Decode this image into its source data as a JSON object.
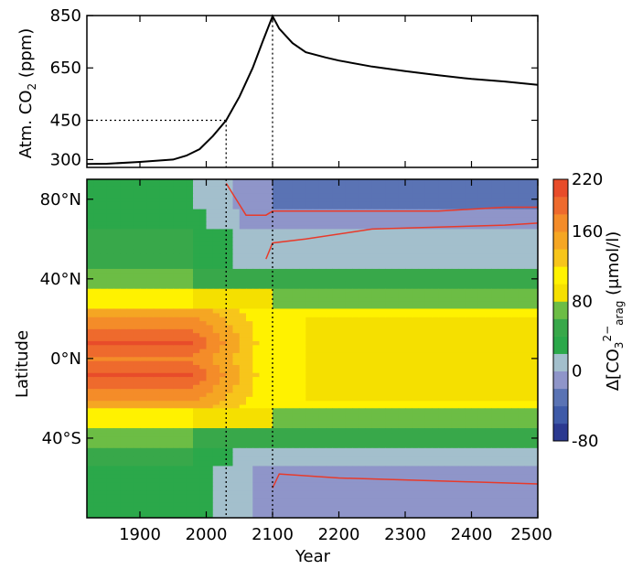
{
  "chart_data": [
    {
      "type": "line",
      "xlabel": "",
      "ylabel": "Atm. CO",
      "ylabel_sub": "2",
      "ylabel_unit": " (ppm)",
      "xlim": [
        1820,
        2500
      ],
      "ylim": [
        270,
        850
      ],
      "yticks": [
        300,
        450,
        650,
        850
      ],
      "series": [
        {
          "x": [
            1820,
            1850,
            1900,
            1950,
            1970,
            1990,
            2010,
            2030,
            2050,
            2070,
            2085,
            2100,
            2110,
            2130,
            2150,
            2180,
            2200,
            2250,
            2300,
            2350,
            2400,
            2450,
            2500
          ],
          "values": [
            283,
            284,
            291,
            300,
            315,
            340,
            390,
            450,
            540,
            650,
            750,
            848,
            800,
            745,
            710,
            690,
            678,
            655,
            638,
            622,
            608,
            598,
            585
          ]
        }
      ],
      "reference_lines": [
        {
          "axis": "y",
          "value": 450,
          "from_x": 1820,
          "to_x": 2030
        },
        {
          "axis": "x",
          "value": 2030
        },
        {
          "axis": "x",
          "value": 2100
        }
      ]
    },
    {
      "type": "heatmap",
      "xlabel": "Year",
      "ylabel": "Latitude",
      "xlim": [
        1820,
        2500
      ],
      "ylim": [
        -80,
        90
      ],
      "xticks": [
        1900,
        2000,
        2100,
        2200,
        2300,
        2400,
        2500
      ],
      "yticks": [
        -40,
        0,
        40,
        80
      ],
      "ytick_labels": [
        "40°S",
        "0°N",
        "40°N",
        "80°N"
      ],
      "colorbar": {
        "label_prefix": "Δ[CO",
        "label_sub": "3",
        "label_sup": "2−",
        "label_sub2": "arag",
        "label_unit": " (μmol/l)",
        "ticks": [
          220,
          160,
          80,
          0,
          -80
        ],
        "bounds": [
          -80,
          -60,
          -40,
          -20,
          0,
          20,
          40,
          60,
          80,
          100,
          120,
          140,
          160,
          180,
          200,
          220
        ],
        "colors": [
          "#2b3990",
          "#3e5aa8",
          "#5a73b4",
          "#8f95c9",
          "#a3bfcc",
          "#2ba84a",
          "#38a84a",
          "#6cbd45",
          "#f5e000",
          "#fff200",
          "#f7c51b",
          "#f5a623",
          "#f48c29",
          "#ee6a2d",
          "#e84c2a"
        ]
      },
      "bands": [
        {
          "lat": [
            75,
            90
          ],
          "before_2010": 20,
          "transition": -20,
          "after_2100": -40
        },
        {
          "lat": [
            65,
            75
          ],
          "before_2010": 30,
          "transition": -20,
          "after_2100": -5
        },
        {
          "lat": [
            45,
            65
          ],
          "before_2010": 40,
          "transition": 0,
          "after_2100": 10
        },
        {
          "lat": [
            35,
            45
          ],
          "before_2010": 60,
          "transition": 40,
          "after_2100": 40
        },
        {
          "lat": [
            25,
            35
          ],
          "before_2010": 100,
          "transition": 80,
          "after_2100": 70
        },
        {
          "lat": [
            -25,
            25
          ],
          "before_2010": 200,
          "transition": 100,
          "after_2100": 100
        },
        {
          "lat": [
            -35,
            -25
          ],
          "before_2010": 100,
          "transition": 80,
          "after_2100": 70
        },
        {
          "lat": [
            -45,
            -35
          ],
          "before_2010": 60,
          "transition": 40,
          "after_2100": 40
        },
        {
          "lat": [
            -55,
            -45
          ],
          "before_2010": 40,
          "transition": 0,
          "after_2100": 10
        },
        {
          "lat": [
            -80,
            -55
          ],
          "before_2010": 30,
          "transition": -10,
          "after_2100": -20
        }
      ],
      "contours": [
        {
          "color": "#e83a2a",
          "label": "",
          "x": [
            2030,
            2060,
            2090,
            2100,
            2150,
            2250,
            2350,
            2450,
            2500
          ],
          "lat": [
            88,
            72,
            72,
            74,
            74,
            74,
            74,
            76,
            76
          ]
        },
        {
          "color": "#e83a2a",
          "label": "",
          "x": [
            2090,
            2100,
            2150,
            2250,
            2350,
            2450,
            2500
          ],
          "lat": [
            50,
            58,
            60,
            65,
            66,
            67,
            68
          ]
        },
        {
          "color": "#e83a2a",
          "label": "",
          "x": [
            2100,
            2110,
            2200,
            2300,
            2400,
            2500
          ],
          "lat": [
            -65,
            -58,
            -60,
            -61,
            -62,
            -63
          ]
        }
      ],
      "reference_lines": [
        {
          "axis": "x",
          "value": 2030
        },
        {
          "axis": "x",
          "value": 2100
        }
      ]
    }
  ]
}
